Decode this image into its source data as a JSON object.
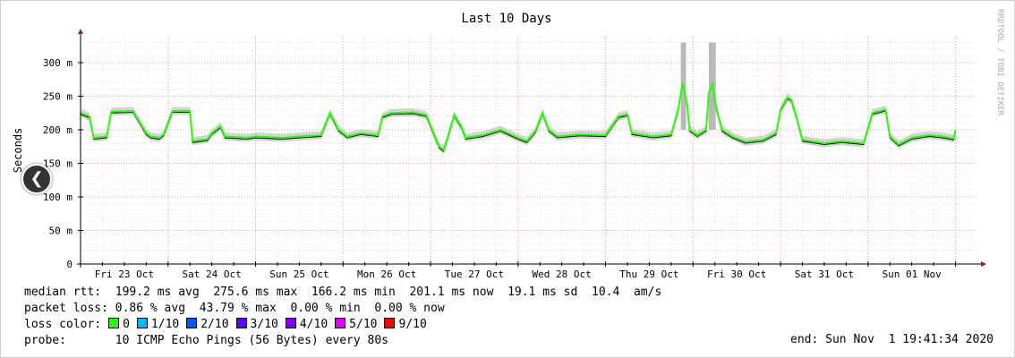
{
  "chart_data": {
    "type": "line",
    "title": "Last 10 Days",
    "ylabel": "Seconds",
    "side_label": "RRDTOOL / TOBI OETIKER",
    "ylim": [
      0,
      0.34
    ],
    "y_ticks": [
      {
        "value": 0,
        "label": "0"
      },
      {
        "value": 0.05,
        "label": "50 m"
      },
      {
        "value": 0.1,
        "label": "100 m"
      },
      {
        "value": 0.15,
        "label": "150 m"
      },
      {
        "value": 0.2,
        "label": "200 m"
      },
      {
        "value": 0.25,
        "label": "250 m"
      },
      {
        "value": 0.3,
        "label": "300 m"
      }
    ],
    "x_range_days": [
      0,
      10.25
    ],
    "x_ticks": [
      {
        "label": "Fri 23 Oct",
        "day": 0.5
      },
      {
        "label": "Sat 24 Oct",
        "day": 1.5
      },
      {
        "label": "Sun 25 Oct",
        "day": 2.5
      },
      {
        "label": "Mon 26 Oct",
        "day": 3.5
      },
      {
        "label": "Tue 27 Oct",
        "day": 4.5
      },
      {
        "label": "Wed 28 Oct",
        "day": 5.5
      },
      {
        "label": "Thu 29 Oct",
        "day": 6.5
      },
      {
        "label": "Fri 30 Oct",
        "day": 7.5
      },
      {
        "label": "Sat 31 Oct",
        "day": 8.5
      },
      {
        "label": "Sun 01 Nov",
        "day": 9.5
      }
    ],
    "grid": true,
    "series": [
      {
        "name": "median rtt",
        "points": [
          [
            0.0,
            0.225
          ],
          [
            0.1,
            0.22
          ],
          [
            0.15,
            0.188
          ],
          [
            0.3,
            0.19
          ],
          [
            0.35,
            0.227
          ],
          [
            0.6,
            0.228
          ],
          [
            0.75,
            0.195
          ],
          [
            0.8,
            0.19
          ],
          [
            0.9,
            0.188
          ],
          [
            0.95,
            0.193
          ],
          [
            1.05,
            0.228
          ],
          [
            1.25,
            0.228
          ],
          [
            1.28,
            0.183
          ],
          [
            1.45,
            0.186
          ],
          [
            1.5,
            0.195
          ],
          [
            1.6,
            0.205
          ],
          [
            1.65,
            0.19
          ],
          [
            1.9,
            0.188
          ],
          [
            2.0,
            0.19
          ],
          [
            2.3,
            0.188
          ],
          [
            2.5,
            0.19
          ],
          [
            2.75,
            0.192
          ],
          [
            2.85,
            0.225
          ],
          [
            2.95,
            0.2
          ],
          [
            3.05,
            0.19
          ],
          [
            3.2,
            0.195
          ],
          [
            3.4,
            0.192
          ],
          [
            3.45,
            0.22
          ],
          [
            3.55,
            0.225
          ],
          [
            3.8,
            0.226
          ],
          [
            3.95,
            0.222
          ],
          [
            4.05,
            0.19
          ],
          [
            4.1,
            0.175
          ],
          [
            4.15,
            0.17
          ],
          [
            4.2,
            0.19
          ],
          [
            4.27,
            0.222
          ],
          [
            4.35,
            0.205
          ],
          [
            4.4,
            0.188
          ],
          [
            4.6,
            0.192
          ],
          [
            4.8,
            0.2
          ],
          [
            5.0,
            0.188
          ],
          [
            5.1,
            0.183
          ],
          [
            5.2,
            0.198
          ],
          [
            5.28,
            0.225
          ],
          [
            5.35,
            0.2
          ],
          [
            5.45,
            0.19
          ],
          [
            5.7,
            0.193
          ],
          [
            6.0,
            0.192
          ],
          [
            6.15,
            0.22
          ],
          [
            6.25,
            0.223
          ],
          [
            6.3,
            0.195
          ],
          [
            6.55,
            0.19
          ],
          [
            6.75,
            0.193
          ],
          [
            6.83,
            0.23
          ],
          [
            6.88,
            0.27
          ],
          [
            6.93,
            0.24
          ],
          [
            6.96,
            0.2
          ],
          [
            7.05,
            0.192
          ],
          [
            7.15,
            0.2
          ],
          [
            7.18,
            0.255
          ],
          [
            7.22,
            0.268
          ],
          [
            7.27,
            0.23
          ],
          [
            7.33,
            0.2
          ],
          [
            7.45,
            0.19
          ],
          [
            7.6,
            0.182
          ],
          [
            7.8,
            0.185
          ],
          [
            7.95,
            0.195
          ],
          [
            8.0,
            0.23
          ],
          [
            8.08,
            0.248
          ],
          [
            8.12,
            0.245
          ],
          [
            8.18,
            0.22
          ],
          [
            8.25,
            0.185
          ],
          [
            8.5,
            0.18
          ],
          [
            8.7,
            0.183
          ],
          [
            8.95,
            0.18
          ],
          [
            9.05,
            0.225
          ],
          [
            9.2,
            0.23
          ],
          [
            9.25,
            0.19
          ],
          [
            9.35,
            0.178
          ],
          [
            9.5,
            0.188
          ],
          [
            9.7,
            0.192
          ],
          [
            9.85,
            0.19
          ],
          [
            9.98,
            0.187
          ],
          [
            10.0,
            0.2
          ]
        ]
      }
    ],
    "loss_spikes": [
      {
        "from": 6.86,
        "to": 6.92,
        "top": 0.33
      },
      {
        "from": 7.18,
        "to": 7.26,
        "top": 0.33
      }
    ]
  },
  "legend": {
    "rtt_label": "median rtt:",
    "rtt_avg": "199.2 ms avg",
    "rtt_max": "275.6 ms max",
    "rtt_min": "166.2 ms min",
    "rtt_now": "201.1 ms now",
    "rtt_sd": "19.1 ms sd",
    "rtt_ams_value": "10.4",
    "rtt_ams_unit": "am/s",
    "loss_label": "packet loss:",
    "loss_avg": "0.86 % avg",
    "loss_max": "43.79 % max",
    "loss_min": "0.00 % min",
    "loss_now": "0.00 % now",
    "loss_color_label": "loss color:",
    "loss_colors": [
      {
        "label": "0",
        "color": "#26ff00"
      },
      {
        "label": "1/10",
        "color": "#00b8ff"
      },
      {
        "label": "2/10",
        "color": "#0059ff"
      },
      {
        "label": "3/10",
        "color": "#5e00ff"
      },
      {
        "label": "4/10",
        "color": "#7e00ff"
      },
      {
        "label": "5/10",
        "color": "#dd00ff"
      },
      {
        "label": "9/10",
        "color": "#ff0000"
      }
    ],
    "probe_label": "probe:",
    "probe_text": "10 ICMP Echo Pings (56 Bytes) every 80s",
    "end_text": "end: Sun Nov  1 19:41:34 2020"
  },
  "colors": {
    "grid_major": "#f0a0a0",
    "grid_minor": "#f4dede",
    "axis": "#000000",
    "smoke": "#b8b8b8",
    "arrow": "#a02020"
  }
}
